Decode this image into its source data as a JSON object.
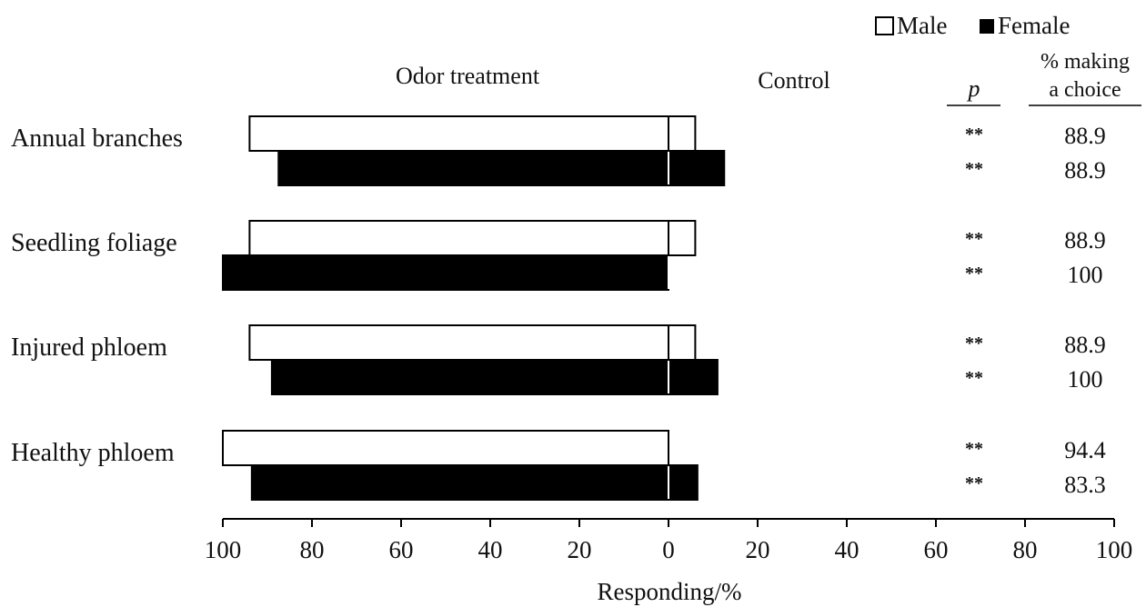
{
  "chart_data": {
    "type": "bar",
    "orientation": "horizontal-diverging",
    "categories": [
      "Annual branches",
      "Seedling foliage",
      "Injured phloem",
      "Healthy phloem"
    ],
    "series": [
      {
        "name": "Male",
        "fill": "#ffffff",
        "odor_treatment": [
          94,
          94,
          94,
          100
        ],
        "control": [
          6,
          6,
          6,
          0
        ],
        "p": [
          "**",
          "**",
          "**",
          "**"
        ],
        "percent_making_choice": [
          "88.9",
          "88.9",
          "88.9",
          "94.4"
        ]
      },
      {
        "name": "Female",
        "fill": "#000000",
        "odor_treatment": [
          87.5,
          100,
          89,
          93.5
        ],
        "control": [
          12.5,
          0,
          11,
          6.5
        ],
        "p": [
          "**",
          "**",
          "**",
          "**"
        ],
        "percent_making_choice": [
          "88.9",
          "100",
          "100",
          "83.3"
        ]
      }
    ],
    "xlabel": "Responding/%",
    "xlim": [
      -100,
      100
    ],
    "tick_labels": [
      "100",
      "80",
      "60",
      "40",
      "20",
      "0",
      "20",
      "40",
      "60",
      "80",
      "100"
    ],
    "left_header": "Odor treatment",
    "right_header": "Control",
    "p_header": "p",
    "choice_header": [
      "% making",
      "a choice"
    ],
    "legend_position": "top-right",
    "grid": false
  }
}
